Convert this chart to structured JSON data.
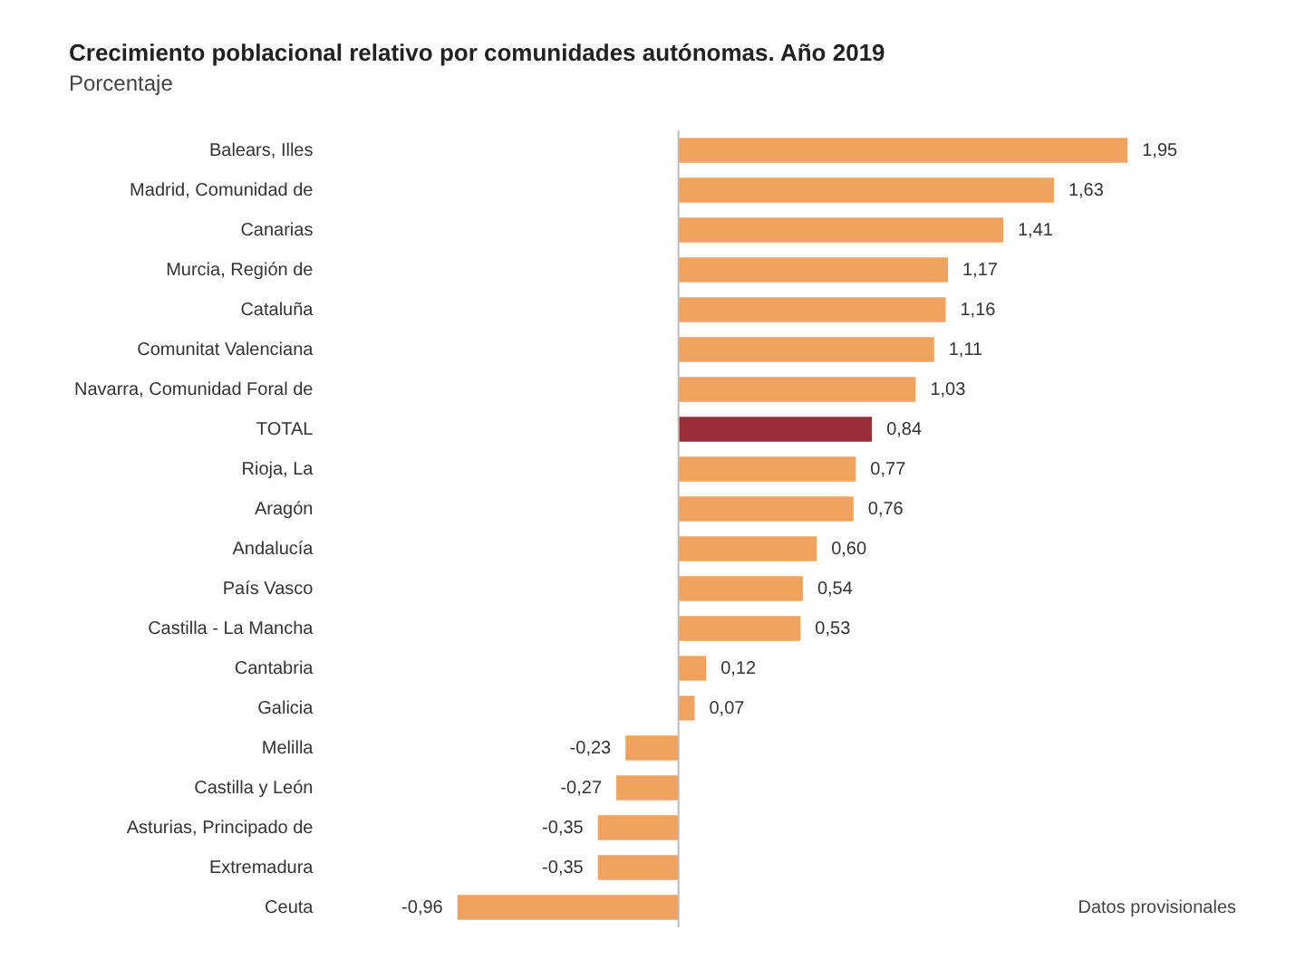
{
  "chart_data": {
    "type": "bar",
    "orientation": "horizontal",
    "title": "Crecimiento poblacional relativo por comunidades autónomas. Año 2019",
    "subtitle": "Porcentaje",
    "categories": [
      "Balears, Illes",
      "Madrid, Comunidad de",
      "Canarias",
      "Murcia, Región de",
      "Cataluña",
      "Comunitat Valenciana",
      "Navarra, Comunidad Foral de",
      "TOTAL",
      "Rioja, La",
      "Aragón",
      "Andalucía",
      "País Vasco",
      "Castilla - La Mancha",
      "Cantabria",
      "Galicia",
      "Melilla",
      "Castilla y León",
      "Asturias, Principado de",
      "Extremadura",
      "Ceuta"
    ],
    "values": [
      1.95,
      1.63,
      1.41,
      1.17,
      1.16,
      1.11,
      1.03,
      0.84,
      0.77,
      0.76,
      0.6,
      0.54,
      0.53,
      0.12,
      0.07,
      -0.23,
      -0.27,
      -0.35,
      -0.35,
      -0.96
    ],
    "value_labels": [
      "1,95",
      "1,63",
      "1,41",
      "1,17",
      "1,16",
      "1,11",
      "1,03",
      "0,84",
      "0,77",
      "0,76",
      "0,60",
      "0,54",
      "0,53",
      "0,12",
      "0,07",
      "-0,23",
      "-0,27",
      "-0,35",
      "-0,35",
      "-0,96"
    ],
    "colors": [
      "#f0a35e",
      "#f0a35e",
      "#f0a35e",
      "#f0a35e",
      "#f0a35e",
      "#f0a35e",
      "#f0a35e",
      "#9b2d3a",
      "#f0a35e",
      "#f0a35e",
      "#f0a35e",
      "#f0a35e",
      "#f0a35e",
      "#f0a35e",
      "#f0a35e",
      "#f0a35e",
      "#f0a35e",
      "#f0a35e",
      "#f0a35e",
      "#f0a35e"
    ],
    "tick_labels": "y",
    "legend": false,
    "annotations": [
      "Datos provisionales"
    ]
  }
}
